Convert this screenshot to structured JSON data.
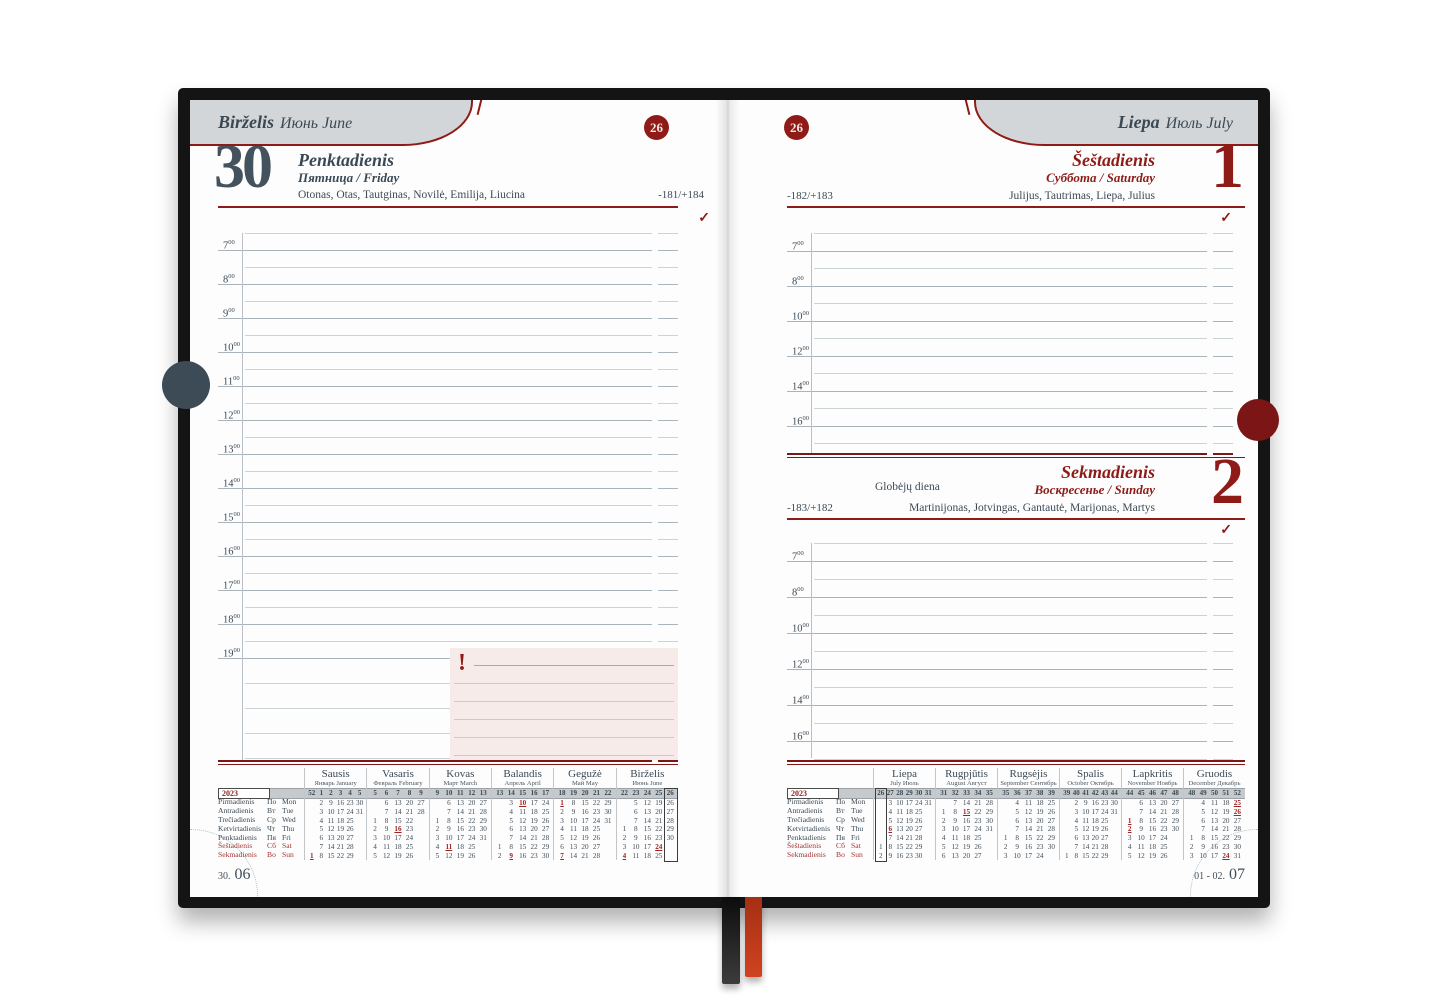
{
  "meta": {
    "year": "2023",
    "minute_sup": "00",
    "footer_left_small": "30.",
    "footer_left_big": "06",
    "footer_right_small": "01 - 02.",
    "footer_right_big": "07"
  },
  "colors": {
    "accent_red": "#8e1b17",
    "slate": "#44525e",
    "tab_gray": "#d3d6d8",
    "band_gray": "#c6cacc",
    "holiday_red": "#9e2321",
    "note_pink": "#f7ebea",
    "cover_black": "#141414",
    "ribbon_black": "#1c1c1c",
    "ribbon_red": "#c63c1e"
  },
  "left_page": {
    "month_header": {
      "lt": "Birželis",
      "ru_en": "Июнь June"
    },
    "week_badge": "26",
    "day": {
      "date": "30",
      "weekday_lt": "Penktadienis",
      "weekday_ru_en": "Пятница / Friday",
      "names": "Otonas, Otas, Tautginas, Novilė, Emilija, Liucina",
      "day_counter": "-181/+184",
      "check": "✓"
    },
    "hours": [
      "7",
      "8",
      "9",
      "10",
      "11",
      "12",
      "13",
      "14",
      "15",
      "16",
      "17",
      "18",
      "19"
    ],
    "note_box": {
      "icon": "!"
    }
  },
  "right_page": {
    "month_header": {
      "lt": "Liepa",
      "ru_en": "Июль July"
    },
    "week_badge": "26",
    "hours": [
      "7",
      "8",
      "10",
      "12",
      "14",
      "16"
    ],
    "day1": {
      "date": "1",
      "weekday_lt": "Šeštadienis",
      "weekday_ru_en": "Суббота / Saturday",
      "names": "Julijus, Tautrimas, Liepa, Julius",
      "day_counter": "-182/+183",
      "check": "✓"
    },
    "day2": {
      "date": "2",
      "weekday_lt": "Sekmadienis",
      "weekday_ru_en": "Воскресенье / Sunday",
      "note": "Globėjų diena",
      "names": "Martinijonas, Jotvingas, Gantautė, Marijonas, Martys",
      "day_counter": "-183/+182",
      "check": "✓"
    }
  },
  "mini_calendar": {
    "year": "2023",
    "holiday_marker": "*",
    "weekday_rows": [
      {
        "lt": "Pirmadienis",
        "ru": "По",
        "en": "Mon",
        "red": false
      },
      {
        "lt": "Antradienis",
        "ru": "Вт",
        "en": "Tue",
        "red": false
      },
      {
        "lt": "Trečiadienis",
        "ru": "Ср",
        "en": "Wed",
        "red": false
      },
      {
        "lt": "Ketvirtadienis",
        "ru": "Чт",
        "en": "Thu",
        "red": false
      },
      {
        "lt": "Penktadienis",
        "ru": "Пя",
        "en": "Fri",
        "red": false
      },
      {
        "lt": "Šeštadienis",
        "ru": "Сб",
        "en": "Sat",
        "red": true
      },
      {
        "lt": "Sekmadienis",
        "ru": "Во",
        "en": "Sun",
        "red": true
      }
    ],
    "left_months": [
      {
        "title": "Sausis",
        "subtitle": "Январь January",
        "weeks": [
          "52",
          "1",
          "2",
          "3",
          "4",
          "5"
        ],
        "cur": null,
        "rows": [
          [
            "",
            "2",
            "9",
            "16",
            "23",
            "30"
          ],
          [
            "",
            "3",
            "10",
            "17",
            "24",
            "31"
          ],
          [
            "",
            "4",
            "11",
            "18",
            "25",
            ""
          ],
          [
            "",
            "5",
            "12",
            "19",
            "26",
            ""
          ],
          [
            "",
            "6",
            "13",
            "20",
            "27",
            ""
          ],
          [
            "",
            "7",
            "14",
            "21",
            "28",
            ""
          ],
          [
            "*1",
            "8",
            "15",
            "22",
            "29",
            ""
          ]
        ]
      },
      {
        "title": "Vasaris",
        "subtitle": "Февраль February",
        "weeks": [
          "5",
          "6",
          "7",
          "8",
          "9"
        ],
        "cur": null,
        "rows": [
          [
            "",
            "6",
            "13",
            "20",
            "27"
          ],
          [
            "",
            "7",
            "14",
            "21",
            "28"
          ],
          [
            "1",
            "8",
            "15",
            "22",
            ""
          ],
          [
            "2",
            "9",
            "*16",
            "23",
            ""
          ],
          [
            "3",
            "10",
            "17",
            "24",
            ""
          ],
          [
            "4",
            "11",
            "18",
            "25",
            ""
          ],
          [
            "5",
            "12",
            "19",
            "26",
            ""
          ]
        ]
      },
      {
        "title": "Kovas",
        "subtitle": "Март March",
        "weeks": [
          "9",
          "10",
          "11",
          "12",
          "13"
        ],
        "cur": null,
        "rows": [
          [
            "",
            "6",
            "13",
            "20",
            "27"
          ],
          [
            "",
            "7",
            "14",
            "21",
            "28"
          ],
          [
            "1",
            "8",
            "15",
            "22",
            "29"
          ],
          [
            "2",
            "9",
            "16",
            "23",
            "30"
          ],
          [
            "3",
            "10",
            "17",
            "24",
            "31"
          ],
          [
            "4",
            "*11",
            "18",
            "25",
            ""
          ],
          [
            "5",
            "12",
            "19",
            "26",
            ""
          ]
        ]
      },
      {
        "title": "Balandis",
        "subtitle": "Апрель April",
        "weeks": [
          "13",
          "14",
          "15",
          "16",
          "17"
        ],
        "cur": null,
        "rows": [
          [
            "",
            "3",
            "*10",
            "17",
            "24"
          ],
          [
            "",
            "4",
            "11",
            "18",
            "25"
          ],
          [
            "",
            "5",
            "12",
            "19",
            "26"
          ],
          [
            "",
            "6",
            "13",
            "20",
            "27"
          ],
          [
            "",
            "7",
            "14",
            "21",
            "28"
          ],
          [
            "1",
            "8",
            "15",
            "22",
            "29"
          ],
          [
            "2",
            "*9",
            "16",
            "23",
            "30"
          ]
        ]
      },
      {
        "title": "Gegužė",
        "subtitle": "Май May",
        "weeks": [
          "18",
          "19",
          "20",
          "21",
          "22"
        ],
        "cur": null,
        "rows": [
          [
            "*1",
            "8",
            "15",
            "22",
            "29"
          ],
          [
            "2",
            "9",
            "16",
            "23",
            "30"
          ],
          [
            "3",
            "10",
            "17",
            "24",
            "31"
          ],
          [
            "4",
            "11",
            "18",
            "25",
            ""
          ],
          [
            "5",
            "12",
            "19",
            "26",
            ""
          ],
          [
            "6",
            "13",
            "20",
            "27",
            ""
          ],
          [
            "*7",
            "14",
            "21",
            "28",
            ""
          ]
        ]
      },
      {
        "title": "Birželis",
        "subtitle": "Июнь June",
        "weeks": [
          "22",
          "23",
          "24",
          "25",
          "26"
        ],
        "cur": 4,
        "rows": [
          [
            "",
            "5",
            "12",
            "19",
            "26"
          ],
          [
            "",
            "6",
            "13",
            "20",
            "27"
          ],
          [
            "",
            "7",
            "14",
            "21",
            "28"
          ],
          [
            "1",
            "8",
            "15",
            "22",
            "29"
          ],
          [
            "2",
            "9",
            "16",
            "23",
            "30"
          ],
          [
            "3",
            "10",
            "17",
            "*24",
            ""
          ],
          [
            "*4",
            "11",
            "18",
            "25",
            ""
          ]
        ]
      }
    ],
    "right_months": [
      {
        "title": "Liepa",
        "subtitle": "July Июль",
        "weeks": [
          "26",
          "27",
          "28",
          "29",
          "30",
          "31"
        ],
        "cur": 0,
        "rows": [
          [
            "",
            "3",
            "10",
            "17",
            "24",
            "31"
          ],
          [
            "",
            "4",
            "11",
            "18",
            "25",
            ""
          ],
          [
            "",
            "5",
            "12",
            "19",
            "26",
            ""
          ],
          [
            "",
            "*6",
            "13",
            "20",
            "27",
            ""
          ],
          [
            "",
            "7",
            "14",
            "21",
            "28",
            ""
          ],
          [
            "1",
            "8",
            "15",
            "22",
            "29",
            ""
          ],
          [
            "2",
            "9",
            "16",
            "23",
            "30",
            ""
          ]
        ]
      },
      {
        "title": "Rugpjūtis",
        "subtitle": "August Август",
        "weeks": [
          "31",
          "32",
          "33",
          "34",
          "35"
        ],
        "cur": null,
        "rows": [
          [
            "",
            "7",
            "14",
            "21",
            "28"
          ],
          [
            "1",
            "8",
            "*15",
            "22",
            "29"
          ],
          [
            "2",
            "9",
            "16",
            "23",
            "30"
          ],
          [
            "3",
            "10",
            "17",
            "24",
            "31"
          ],
          [
            "4",
            "11",
            "18",
            "25",
            ""
          ],
          [
            "5",
            "12",
            "19",
            "26",
            ""
          ],
          [
            "6",
            "13",
            "20",
            "27",
            ""
          ]
        ]
      },
      {
        "title": "Rugsėjis",
        "subtitle": "September Сентябрь",
        "weeks": [
          "35",
          "36",
          "37",
          "38",
          "39"
        ],
        "cur": null,
        "rows": [
          [
            "",
            "4",
            "11",
            "18",
            "25"
          ],
          [
            "",
            "5",
            "12",
            "19",
            "26"
          ],
          [
            "",
            "6",
            "13",
            "20",
            "27"
          ],
          [
            "",
            "7",
            "14",
            "21",
            "28"
          ],
          [
            "1",
            "8",
            "15",
            "22",
            "29"
          ],
          [
            "2",
            "9",
            "16",
            "23",
            "30"
          ],
          [
            "3",
            "10",
            "17",
            "24",
            ""
          ]
        ]
      },
      {
        "title": "Spalis",
        "subtitle": "October Октябрь",
        "weeks": [
          "39",
          "40",
          "41",
          "42",
          "43",
          "44"
        ],
        "cur": null,
        "rows": [
          [
            "",
            "2",
            "9",
            "16",
            "23",
            "30"
          ],
          [
            "",
            "3",
            "10",
            "17",
            "24",
            "31"
          ],
          [
            "",
            "4",
            "11",
            "18",
            "25",
            ""
          ],
          [
            "",
            "5",
            "12",
            "19",
            "26",
            ""
          ],
          [
            "",
            "6",
            "13",
            "20",
            "27",
            ""
          ],
          [
            "",
            "7",
            "14",
            "21",
            "28",
            ""
          ],
          [
            "1",
            "8",
            "15",
            "22",
            "29",
            ""
          ]
        ]
      },
      {
        "title": "Lapkritis",
        "subtitle": "November Ноябрь",
        "weeks": [
          "44",
          "45",
          "46",
          "47",
          "48"
        ],
        "cur": null,
        "rows": [
          [
            "",
            "6",
            "13",
            "20",
            "27"
          ],
          [
            "",
            "7",
            "14",
            "21",
            "28"
          ],
          [
            "*1",
            "8",
            "15",
            "22",
            "29"
          ],
          [
            "*2",
            "9",
            "16",
            "23",
            "30"
          ],
          [
            "3",
            "10",
            "17",
            "24",
            ""
          ],
          [
            "4",
            "11",
            "18",
            "25",
            ""
          ],
          [
            "5",
            "12",
            "19",
            "26",
            ""
          ]
        ]
      },
      {
        "title": "Gruodis",
        "subtitle": "December Декабрь",
        "weeks": [
          "48",
          "49",
          "50",
          "51",
          "52"
        ],
        "cur": null,
        "rows": [
          [
            "",
            "4",
            "11",
            "18",
            "*25"
          ],
          [
            "",
            "5",
            "12",
            "19",
            "*26"
          ],
          [
            "",
            "6",
            "13",
            "20",
            "27"
          ],
          [
            "",
            "7",
            "14",
            "21",
            "28"
          ],
          [
            "1",
            "8",
            "15",
            "22",
            "29"
          ],
          [
            "2",
            "9",
            "16",
            "23",
            "30"
          ],
          [
            "3",
            "10",
            "17",
            "*24",
            "31"
          ]
        ]
      }
    ]
  }
}
